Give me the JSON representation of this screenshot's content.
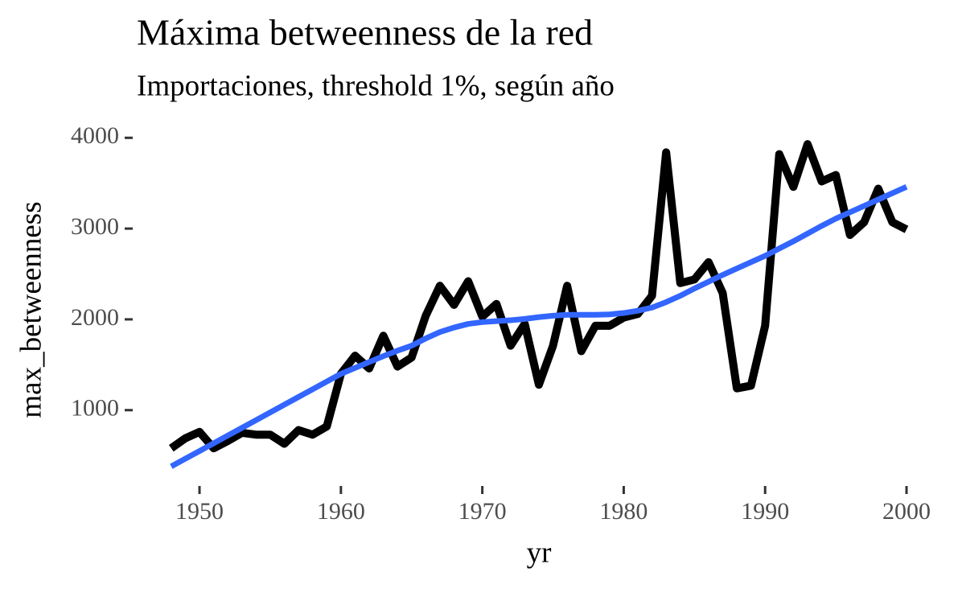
{
  "chart_data": {
    "type": "line",
    "title": "Máxima betweenness de la red",
    "subtitle": "Importaciones, threshold 1%, según año",
    "x_label": "yr",
    "y_label": "max_betweenness",
    "x": [
      1948,
      1949,
      1950,
      1951,
      1952,
      1953,
      1954,
      1955,
      1956,
      1957,
      1958,
      1959,
      1960,
      1961,
      1962,
      1963,
      1964,
      1965,
      1966,
      1967,
      1968,
      1969,
      1970,
      1971,
      1972,
      1973,
      1974,
      1975,
      1976,
      1977,
      1978,
      1979,
      1980,
      1981,
      1982,
      1983,
      1984,
      1985,
      1986,
      1987,
      1988,
      1989,
      1990,
      1991,
      1992,
      1993,
      1994,
      1995,
      1996,
      1997,
      1998,
      1999,
      2000
    ],
    "series": [
      {
        "color": "#000000",
        "values": [
          580,
          690,
          760,
          580,
          660,
          750,
          730,
          730,
          630,
          780,
          730,
          820,
          1400,
          1600,
          1460,
          1820,
          1480,
          1580,
          2040,
          2370,
          2160,
          2420,
          2030,
          2170,
          1710,
          1950,
          1280,
          1710,
          2370,
          1650,
          1930,
          1930,
          2020,
          2060,
          2260,
          3840,
          2400,
          2440,
          2630,
          2290,
          1240,
          1270,
          1930,
          3820,
          3460,
          3930,
          3520,
          3590,
          2930,
          3070,
          3440,
          3070,
          2990
        ]
      },
      {
        "color": "#3366ff",
        "values": [
          380,
          465,
          550,
          635,
          720,
          805,
          890,
          975,
          1060,
          1145,
          1230,
          1315,
          1400,
          1465,
          1530,
          1595,
          1655,
          1710,
          1790,
          1860,
          1910,
          1950,
          1970,
          1980,
          1990,
          2005,
          2025,
          2040,
          2050,
          2050,
          2050,
          2055,
          2070,
          2095,
          2130,
          2190,
          2260,
          2340,
          2415,
          2490,
          2560,
          2630,
          2700,
          2780,
          2860,
          2945,
          3030,
          3110,
          3180,
          3250,
          3320,
          3390,
          3460
        ]
      }
    ],
    "xlim": [
      1946.5,
      2001.5
    ],
    "ylim": [
      200,
      4100
    ],
    "xticks": [
      1950,
      1960,
      1970,
      1980,
      1990,
      2000
    ],
    "yticks": [
      1000,
      2000,
      3000,
      4000
    ],
    "grid": false
  }
}
